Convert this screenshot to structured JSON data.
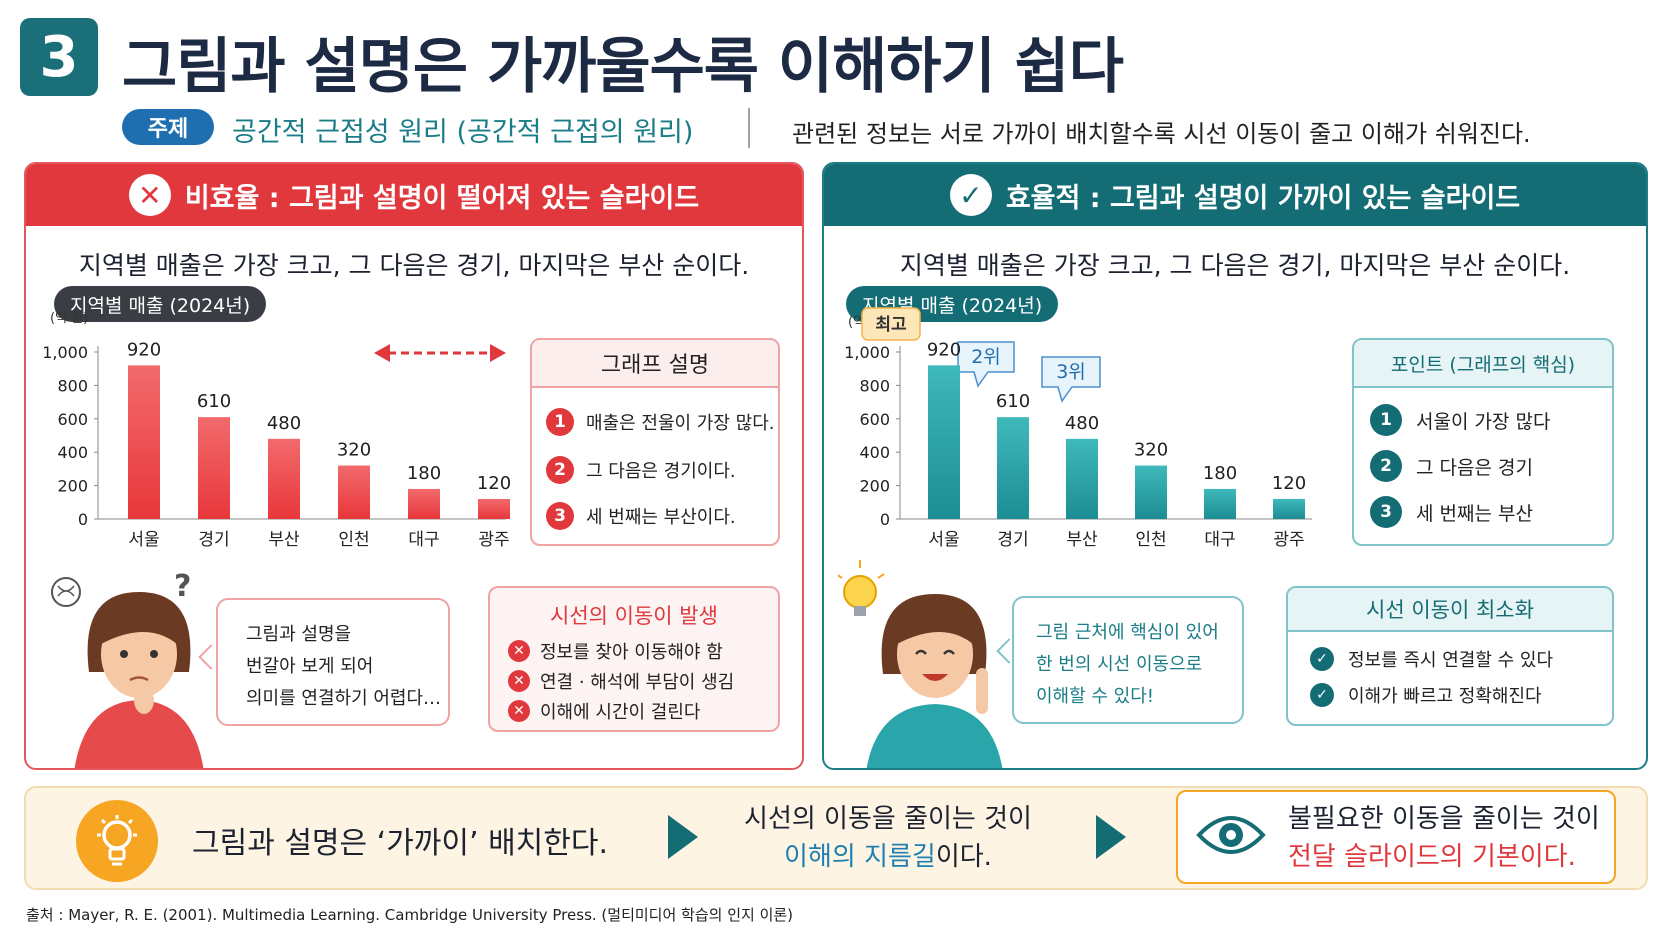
{
  "header": {
    "number": "3",
    "title": "그림과 설명은 가까울수록 이해하기 쉽다",
    "topic_label": "주제",
    "topic_name": "공간적 근접성 원리 (공간적 근접의 원리)",
    "topic_desc": "관련된 정보는 서로 가까이 배치할수록 시선 이동이 줄고 이해가 쉬워진다."
  },
  "left_panel": {
    "title": "비효율 : 그림과 설명이 떨어져 있는 슬라이드",
    "sentence": "지역별 매출은 가장 크고, 그 다음은 경기, 마지막은 부산 순이다.",
    "chart_label": "지역별 매출 (2024년)",
    "unit": "(억 원)",
    "desc_title": "그래프 설명",
    "desc_items": [
      "매출은 전울이 가장 많다.",
      "그 다음은 경기이다.",
      "세 번째는 부산이다."
    ],
    "desc_nums": [
      "1",
      "2",
      "3"
    ],
    "question_mark": "?",
    "speech": [
      "그림과 설명을",
      "번갈아 보게 되어",
      "의미를 연결하기 어렵다…"
    ],
    "issue_title": "시선의 이동이 발생",
    "issue_items": [
      "정보를 찾아 이동해야 함",
      "연결 · 해석에 부담이 생김",
      "이해에 시간이 걸린다"
    ]
  },
  "right_panel": {
    "title": "효율적 : 그림과 설명이 가까이 있는 슬라이드",
    "sentence": "지역별 매출은 가장 크고, 그 다음은 경기, 마지막은 부산 순이다.",
    "chart_label": "지역별 매출 (2024년)",
    "unit": "(억 원)",
    "badge_top": "최고",
    "badge_2": "2위",
    "badge_3": "3위",
    "point_title": "포인트 (그래프의 핵심)",
    "point_items": [
      "서울이 가장 많다",
      "그 다음은 경기",
      "세 번째는 부산"
    ],
    "point_nums": [
      "1",
      "2",
      "3"
    ],
    "speech": [
      "그림 근처에 핵심이 있어",
      "한 번의 시선 이동으로",
      "이해할 수 있다!"
    ],
    "min_title": "시선 이동이 최소화",
    "min_items": [
      "정보를 즉시 연결할 수 있다",
      "이해가 빠르고 정확해진다"
    ]
  },
  "bottom": {
    "main": "그림과 설명은 ‘가까이’ 배치한다.",
    "mid_line1": "시선의 이동을 줄이는 것이",
    "mid_highlight": "이해의 지름길",
    "mid_suffix": "이다.",
    "final_line1": "불필요한 이동을 줄이는 것이",
    "final_line2": "전달 슬라이드의 기본이다."
  },
  "source": "출처 :  Mayer, R. E. (2001). Multimedia Learning. Cambridge University Press. (멀티미디어 학습의 인지 이론)",
  "colors": {
    "red": "#e0383d",
    "teal": "#146c74",
    "bar_red": "#ef4d50",
    "bar_teal": "#2aa6aa",
    "orange": "#f6a623"
  },
  "chart_data": [
    {
      "type": "bar",
      "title": "지역별 매출 (2024년)",
      "ylabel": "(억 원)",
      "categories": [
        "서울",
        "경기",
        "부산",
        "인천",
        "대구",
        "광주"
      ],
      "values": [
        920,
        610,
        480,
        320,
        180,
        120
      ],
      "yticks": [
        0,
        200,
        400,
        600,
        800,
        1000
      ],
      "ytick_labels": [
        "0",
        "200",
        "400",
        "600",
        "800",
        "1,000"
      ],
      "ylim": [
        0,
        1000
      ],
      "grid": false
    },
    {
      "type": "bar",
      "title": "지역별 매출 (2024년)",
      "ylabel": "(억 원)",
      "categories": [
        "서울",
        "경기",
        "부산",
        "인천",
        "대구",
        "광주"
      ],
      "values": [
        920,
        610,
        480,
        320,
        180,
        120
      ],
      "yticks": [
        0,
        200,
        400,
        600,
        800,
        1000
      ],
      "ytick_labels": [
        "0",
        "200",
        "400",
        "600",
        "800",
        "1,000"
      ],
      "ylim": [
        0,
        1000
      ],
      "grid": false
    }
  ]
}
